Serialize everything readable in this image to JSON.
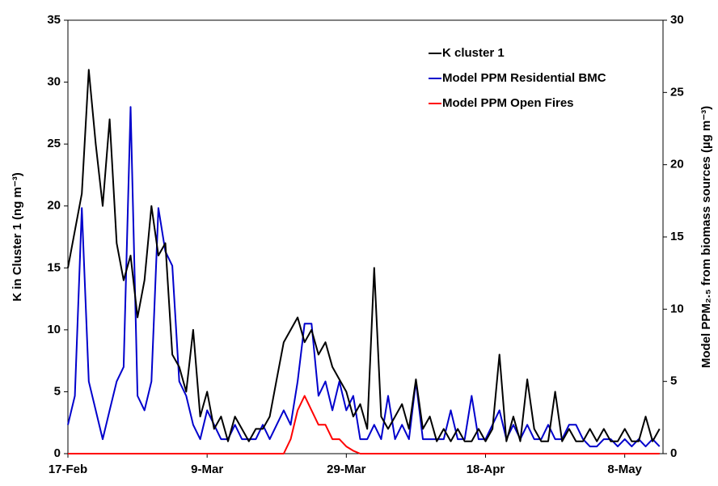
{
  "chart_data": {
    "type": "line",
    "x": [
      0,
      1,
      2,
      3,
      4,
      5,
      6,
      7,
      8,
      9,
      10,
      11,
      12,
      13,
      14,
      15,
      16,
      17,
      18,
      19,
      20,
      21,
      22,
      23,
      24,
      25,
      26,
      27,
      28,
      29,
      30,
      31,
      32,
      33,
      34,
      35,
      36,
      37,
      38,
      39,
      40,
      41,
      42,
      43,
      44,
      45,
      46,
      47,
      48,
      49,
      50,
      51,
      52,
      53,
      54,
      55,
      56,
      57,
      58,
      59,
      60,
      61,
      62,
      63,
      64,
      65,
      66,
      67,
      68,
      69,
      70,
      71,
      72,
      73,
      74,
      75,
      76,
      77,
      78,
      79,
      80,
      81,
      82,
      83,
      84,
      85
    ],
    "xlim": [
      0,
      85.5
    ],
    "xticks": [
      {
        "value": 0,
        "label": "17-Feb"
      },
      {
        "value": 20,
        "label": "9-Mar"
      },
      {
        "value": 40,
        "label": "29-Mar"
      },
      {
        "value": 60,
        "label": "18-Apr"
      },
      {
        "value": 80,
        "label": "8-May"
      }
    ],
    "ylabel": "K in Cluster 1 (ng  m⁻³)",
    "y2label": "Model PPM₂.₅ from biomass sources (µg m⁻³)",
    "ylim": [
      0,
      35
    ],
    "yticks": [
      0,
      5,
      10,
      15,
      20,
      25,
      30,
      35
    ],
    "y2lim": [
      0,
      30
    ],
    "y2ticks": [
      0,
      5,
      10,
      15,
      20,
      25,
      30
    ],
    "series": [
      {
        "name": "K cluster 1",
        "color": "#000000",
        "values": [
          15,
          18,
          21,
          31,
          25,
          20,
          27,
          17,
          14,
          16,
          11,
          14,
          20,
          16,
          17,
          8,
          7,
          5,
          10,
          3,
          5,
          2,
          3,
          1,
          3,
          2,
          1,
          2,
          2,
          3,
          6,
          9,
          10,
          11,
          9,
          10,
          8,
          9,
          7,
          6,
          5,
          3,
          4,
          2,
          15,
          3,
          2,
          3,
          4,
          2,
          6,
          2,
          3,
          1,
          2,
          1,
          2,
          1,
          1,
          2,
          1,
          2,
          8,
          1,
          3,
          1,
          6,
          2,
          1,
          1,
          5,
          1,
          2,
          1,
          1,
          2,
          1,
          2,
          1,
          1,
          2,
          1,
          1,
          3,
          1,
          2
        ]
      },
      {
        "name": "Model PPM Residential BMC",
        "color": "#0000cc",
        "axis": "y2",
        "values": [
          2,
          4,
          17,
          5,
          3,
          1,
          3,
          5,
          6,
          24,
          4,
          3,
          5,
          17,
          14,
          13,
          5,
          4,
          2,
          1,
          3,
          2,
          1,
          1,
          2,
          1,
          1,
          1,
          2,
          1,
          2,
          3,
          2,
          5,
          9,
          9,
          4,
          5,
          3,
          5,
          3,
          4,
          1,
          1,
          2,
          1,
          4,
          1,
          2,
          1,
          5,
          1,
          1,
          1,
          1,
          3,
          1,
          1,
          4,
          1,
          1,
          2,
          3,
          1,
          2,
          1,
          2,
          1,
          1,
          2,
          1,
          1,
          2,
          2,
          1,
          0.5,
          0.5,
          1,
          1,
          0.5,
          1,
          0.5,
          1,
          0.5,
          1,
          0.5
        ]
      },
      {
        "name": "Model PPM Open Fires",
        "color": "#ff0000",
        "axis": "y2",
        "values": [
          0,
          0,
          0,
          0,
          0,
          0,
          0,
          0,
          0,
          0,
          0,
          0,
          0,
          0,
          0,
          0,
          0,
          0,
          0,
          0,
          0,
          0,
          0,
          0,
          0,
          0,
          0,
          0,
          0,
          0,
          0,
          0,
          1,
          3,
          4,
          3,
          2,
          2,
          1,
          1,
          0.5,
          0.2,
          0,
          0,
          0,
          0,
          0,
          0,
          0,
          0,
          0,
          0,
          0,
          0,
          0,
          0,
          0,
          0,
          0,
          0,
          0,
          0,
          0,
          0,
          0,
          0,
          0,
          0,
          0,
          0,
          0,
          0,
          0,
          0,
          0,
          0,
          0,
          0,
          0,
          0,
          0,
          0,
          0,
          0,
          0,
          0
        ]
      }
    ]
  }
}
